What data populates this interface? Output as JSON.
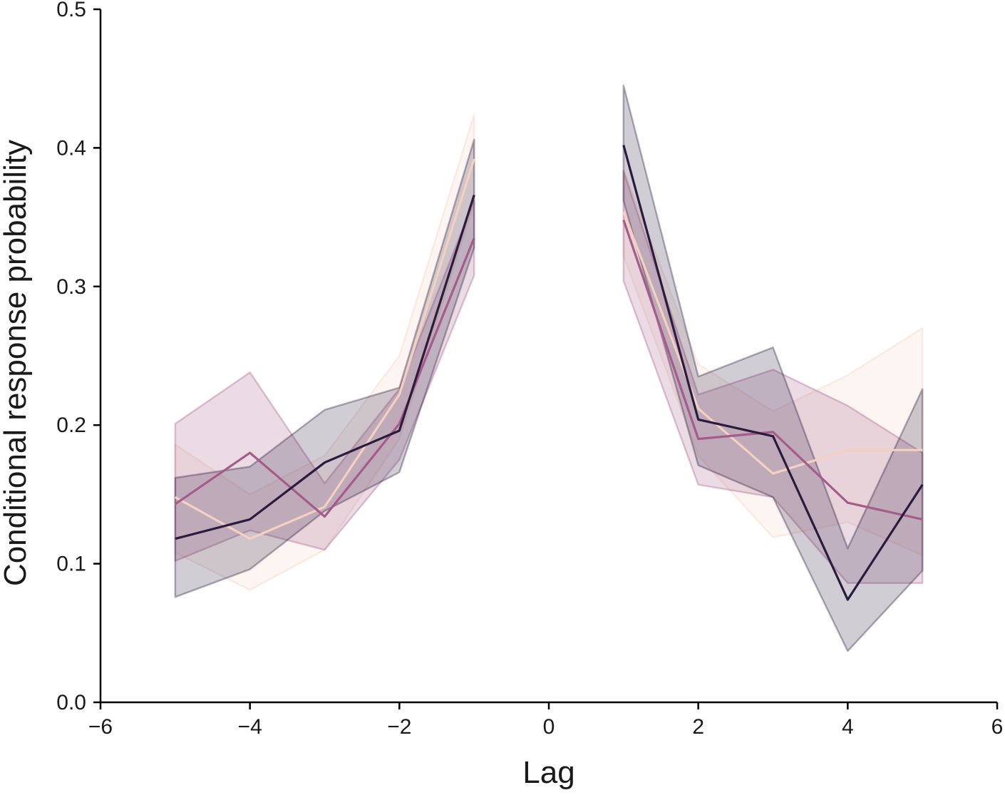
{
  "chart_data": {
    "type": "line",
    "title": "",
    "xlabel": "Lag",
    "ylabel": "Conditional response probability",
    "xlim": [
      -6,
      6
    ],
    "ylim": [
      0.0,
      0.5
    ],
    "xticks": [
      "−6",
      "−4",
      "−2",
      "0",
      "2",
      "4",
      "6"
    ],
    "xtick_values": [
      -6,
      -4,
      -2,
      0,
      2,
      4,
      6
    ],
    "yticks": [
      "0.0",
      "0.1",
      "0.2",
      "0.3",
      "0.4",
      "0.5"
    ],
    "ytick_values": [
      0.0,
      0.1,
      0.2,
      0.3,
      0.4,
      0.5
    ],
    "grid": false,
    "legend": "none",
    "series": [
      {
        "color": "#f3d0c0",
        "segments": [
          {
            "x": [
              -5,
              -4,
              -3,
              -2,
              -1
            ],
            "y": [
              0.148,
              0.118,
              0.141,
              0.222,
              0.392
            ],
            "lower": [
              0.108,
              0.081,
              0.11,
              0.19,
              0.36
            ],
            "upper": [
              0.186,
              0.15,
              0.178,
              0.25,
              0.424
            ]
          },
          {
            "x": [
              1,
              2,
              3,
              4,
              5
            ],
            "y": [
              0.354,
              0.212,
              0.165,
              0.182,
              0.182
            ],
            "lower": [
              0.322,
              0.178,
              0.119,
              0.13,
              0.106
            ],
            "upper": [
              0.384,
              0.244,
              0.21,
              0.236,
              0.27
            ]
          }
        ]
      },
      {
        "color": "#a65c8a",
        "segments": [
          {
            "x": [
              -5,
              -4,
              -3,
              -2,
              -1
            ],
            "y": [
              0.143,
              0.18,
              0.134,
              0.201,
              0.335
            ],
            "lower": [
              0.102,
              0.124,
              0.11,
              0.175,
              0.308
            ],
            "upper": [
              0.201,
              0.238,
              0.158,
              0.226,
              0.362
            ]
          },
          {
            "x": [
              1,
              2,
              3,
              4,
              5
            ],
            "y": [
              0.348,
              0.19,
              0.195,
              0.144,
              0.132
            ],
            "lower": [
              0.304,
              0.157,
              0.148,
              0.086,
              0.086
            ],
            "upper": [
              0.383,
              0.222,
              0.24,
              0.214,
              0.18
            ]
          }
        ]
      },
      {
        "color": "#2b1b3e",
        "segments": [
          {
            "x": [
              -5,
              -4,
              -3,
              -2,
              -1
            ],
            "y": [
              0.118,
              0.132,
              0.173,
              0.196,
              0.366
            ],
            "lower": [
              0.076,
              0.096,
              0.138,
              0.166,
              0.328
            ],
            "upper": [
              0.162,
              0.17,
              0.211,
              0.227,
              0.406
            ]
          },
          {
            "x": [
              1,
              2,
              3,
              4,
              5
            ],
            "y": [
              0.402,
              0.204,
              0.192,
              0.074,
              0.157
            ],
            "lower": [
              0.362,
              0.171,
              0.148,
              0.037,
              0.095
            ],
            "upper": [
              0.445,
              0.235,
              0.256,
              0.111,
              0.226
            ]
          }
        ]
      }
    ]
  }
}
